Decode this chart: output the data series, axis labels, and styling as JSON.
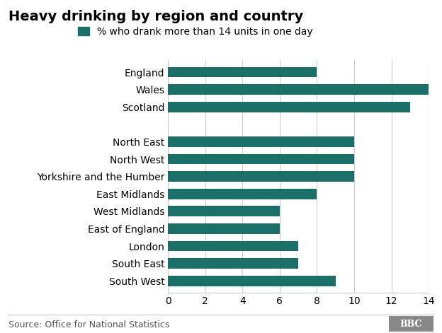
{
  "title": "Heavy drinking by region and country",
  "legend_label": "% who drank more than 14 units in one day",
  "bar_color": "#1a7068",
  "legend_color": "#1a7068",
  "background_color": "#ffffff",
  "source_text": "Source: Office for National Statistics",
  "bbc_text": "BBC",
  "categories": [
    "South West",
    "South East",
    "London",
    "East of England",
    "West Midlands",
    "East Midlands",
    "Yorkshire and the Humber",
    "North West",
    "North East",
    "",
    "Scotland",
    "Wales",
    "England"
  ],
  "values": [
    9,
    7,
    7,
    6,
    6,
    8,
    10,
    10,
    10,
    null,
    13,
    14,
    8
  ],
  "xlim": [
    0,
    14
  ],
  "xticks": [
    0,
    2,
    4,
    6,
    8,
    10,
    12,
    14
  ],
  "title_fontsize": 14,
  "legend_fontsize": 10,
  "tick_fontsize": 10,
  "source_fontsize": 9
}
